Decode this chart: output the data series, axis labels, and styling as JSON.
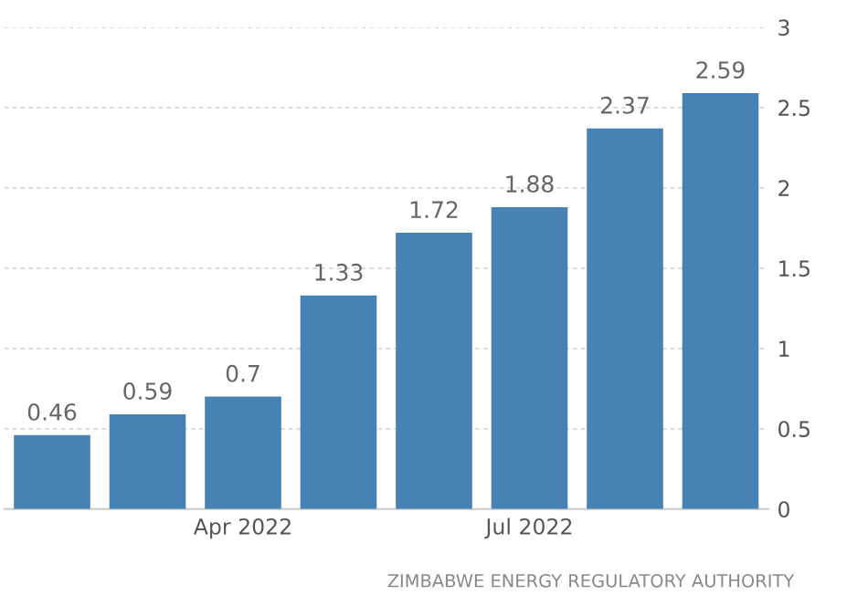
{
  "chart_data": {
    "type": "bar",
    "categories": [
      null,
      null,
      "Apr 2022",
      null,
      null,
      "Jul 2022",
      null,
      null
    ],
    "series": [
      {
        "color": "#4682b4",
        "values": [
          0.46,
          0.59,
          0.7,
          1.33,
          1.72,
          1.88,
          2.37,
          2.59
        ]
      }
    ],
    "data_labels": true,
    "ylim": [
      0,
      3
    ],
    "yticks": [
      0,
      0.5,
      1,
      1.5,
      2,
      2.5,
      3
    ],
    "grid": "y",
    "annotations": [
      "ZIMBABWE ENERGY REGULATORY AUTHORITY"
    ]
  }
}
